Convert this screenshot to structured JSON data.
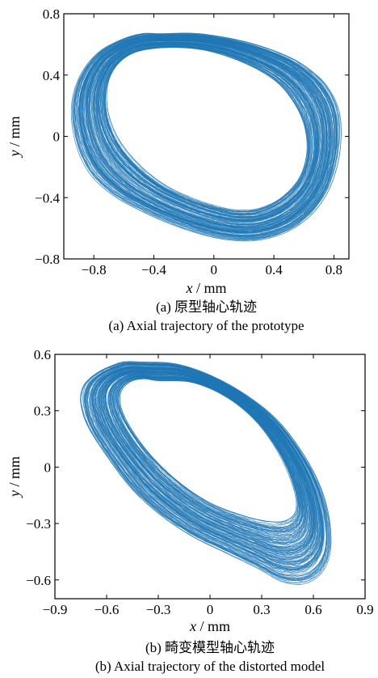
{
  "chart_data": [
    {
      "type": "line",
      "caption_cn": "(a) 原型轴心轨迹",
      "caption_en": "(a) Axial trajectory of the prototype",
      "xlabel_var": "x",
      "xlabel_unit": " / mm",
      "ylabel_var": "y",
      "ylabel_unit": " / mm",
      "xlim": [
        -1.0,
        0.9
      ],
      "ylim": [
        -0.8,
        0.8
      ],
      "xticks": [
        -0.8,
        -0.4,
        0,
        0.4,
        0.8
      ],
      "xtick_labels": [
        "−0.8",
        "−0.4",
        "0",
        "0.4",
        "0.8"
      ],
      "yticks": [
        -0.8,
        -0.4,
        0,
        0.4,
        0.8
      ],
      "ytick_labels": [
        "−0.8",
        "−0.4",
        "0",
        "0.4",
        "0.8"
      ],
      "series": [
        {
          "color": "#1f77b4",
          "outer": {
            "x": [
              -0.35,
              -0.1,
              0.2,
              0.45,
              0.62,
              0.76,
              0.84,
              0.84,
              0.78,
              0.68,
              0.55,
              0.42,
              0.28,
              0.14,
              0.0,
              -0.15,
              -0.32,
              -0.5,
              -0.68,
              -0.83,
              -0.92,
              -0.95,
              -0.9,
              -0.78,
              -0.62,
              -0.48
            ],
            "y": [
              0.67,
              0.67,
              0.62,
              0.54,
              0.45,
              0.32,
              0.14,
              -0.1,
              -0.32,
              -0.48,
              -0.59,
              -0.65,
              -0.68,
              -0.68,
              -0.66,
              -0.62,
              -0.56,
              -0.48,
              -0.38,
              -0.24,
              -0.05,
              0.18,
              0.38,
              0.54,
              0.63,
              0.67
            ]
          },
          "inner": {
            "x": [
              -0.3,
              -0.05,
              0.2,
              0.4,
              0.52,
              0.6,
              0.62,
              0.57,
              0.45,
              0.3,
              0.15,
              0.0,
              -0.15,
              -0.32,
              -0.48,
              -0.62,
              -0.7,
              -0.71,
              -0.65,
              -0.52
            ],
            "y": [
              0.58,
              0.56,
              0.48,
              0.37,
              0.24,
              0.08,
              -0.1,
              -0.27,
              -0.4,
              -0.47,
              -0.48,
              -0.45,
              -0.4,
              -0.32,
              -0.2,
              -0.04,
              0.14,
              0.32,
              0.46,
              0.55
            ]
          }
        }
      ]
    },
    {
      "type": "line",
      "caption_cn": "(b) 畸变模型轴心轨迹",
      "caption_en": "(b) Axial trajectory of the distorted model",
      "xlabel_var": "x",
      "xlabel_unit": " / mm",
      "ylabel_var": "y",
      "ylabel_unit": " / mm",
      "xlim": [
        -0.9,
        0.9
      ],
      "ylim": [
        -0.7,
        0.6
      ],
      "xticks": [
        -0.9,
        -0.6,
        -0.3,
        0,
        0.3,
        0.6,
        0.9
      ],
      "xtick_labels": [
        "−0.9",
        "−0.6",
        "−0.3",
        "0",
        "0.3",
        "0.6",
        "0.9"
      ],
      "yticks": [
        -0.6,
        -0.3,
        0,
        0.3,
        0.6
      ],
      "ytick_labels": [
        "−0.6",
        "−0.3",
        "0",
        "0.3",
        "0.6"
      ],
      "series": [
        {
          "color": "#1f77b4",
          "outer": {
            "x": [
              -0.4,
              -0.2,
              0.0,
              0.2,
              0.38,
              0.52,
              0.63,
              0.69,
              0.7,
              0.65,
              0.55,
              0.42,
              0.28,
              0.1,
              -0.1,
              -0.28,
              -0.45,
              -0.6,
              -0.71,
              -0.75,
              -0.74,
              -0.7,
              -0.64,
              -0.57,
              -0.5
            ],
            "y": [
              0.56,
              0.55,
              0.49,
              0.39,
              0.26,
              0.1,
              -0.08,
              -0.26,
              -0.44,
              -0.56,
              -0.62,
              -0.61,
              -0.54,
              -0.46,
              -0.37,
              -0.26,
              -0.12,
              0.06,
              0.22,
              0.34,
              0.42,
              0.47,
              0.51,
              0.54,
              0.56
            ]
          },
          "inner": {
            "x": [
              -0.3,
              -0.1,
              0.1,
              0.27,
              0.4,
              0.48,
              0.5,
              0.45,
              0.35,
              0.2,
              0.0,
              -0.18,
              -0.33,
              -0.44,
              -0.51,
              -0.52,
              -0.47,
              -0.39
            ],
            "y": [
              0.46,
              0.45,
              0.37,
              0.24,
              0.07,
              -0.1,
              -0.22,
              -0.28,
              -0.29,
              -0.26,
              -0.19,
              -0.08,
              0.05,
              0.18,
              0.3,
              0.39,
              0.45,
              0.47
            ]
          }
        }
      ]
    }
  ]
}
